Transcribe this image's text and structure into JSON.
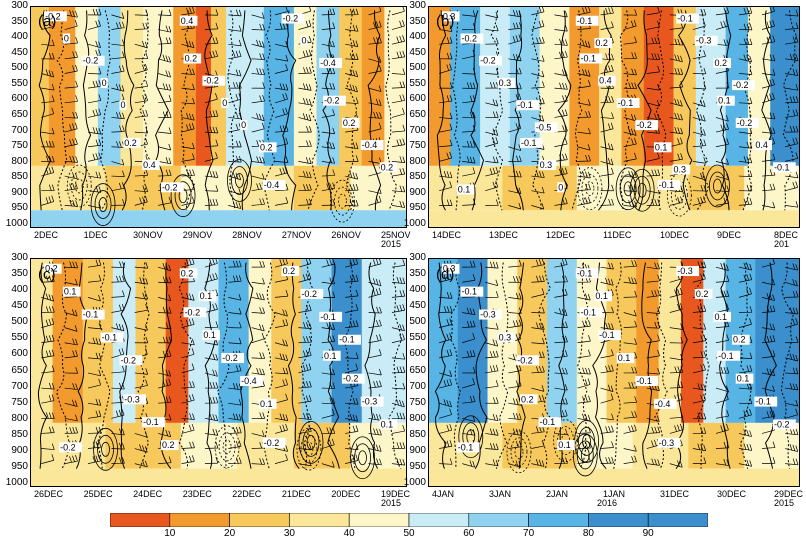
{
  "figure": {
    "y_ticks": [
      "300",
      "350",
      "400",
      "450",
      "500",
      "550",
      "600",
      "650",
      "700",
      "750",
      "800",
      "850",
      "900",
      "950",
      "1000"
    ],
    "colors": {
      "10": "#e8581e",
      "20": "#f29a2e",
      "30": "#f7c95c",
      "40": "#fbe79a",
      "50": "#fdf6c8",
      "60": "#c9ecf6",
      "70": "#8fd3f0",
      "80": "#57b4e4",
      "90": "#3a8fcc"
    }
  },
  "chart_data": [
    {
      "type": "heatmap",
      "panel_label": "(a)",
      "x_ticks": [
        "2DEC",
        "1DEC",
        "30NOV",
        "29NOV",
        "28NOV",
        "27NOV",
        "26NOV",
        "25NOV"
      ],
      "x_year": "2015",
      "y_ticks": [
        "300",
        "350",
        "400",
        "450",
        "500",
        "550",
        "600",
        "650",
        "700",
        "750",
        "800",
        "850",
        "900",
        "950",
        "1000"
      ],
      "contour_labels": [
        "-0.2",
        "0.2",
        "-0.2",
        "0.2",
        "-0.4",
        "0",
        "-0.2",
        "0.2",
        "0.4",
        "-0.2",
        "-0.2",
        "0",
        "-0.4",
        "-0.2",
        "0",
        "0",
        "0",
        "0.2",
        "0.4",
        "-0.4",
        "0",
        "0.2"
      ]
    },
    {
      "type": "heatmap",
      "panel_label": "(b)",
      "x_ticks": [
        "14DEC",
        "13DEC",
        "12DEC",
        "11DEC",
        "10DEC",
        "9DEC",
        "8DEC"
      ],
      "x_year": "201",
      "y_ticks": [
        "300",
        "350",
        "400",
        "450",
        "500",
        "550",
        "600",
        "650",
        "700",
        "750",
        "800",
        "850",
        "900",
        "950",
        "1000"
      ],
      "contour_labels": [
        "0.3",
        "-0.1",
        "0.1",
        "-0.1",
        "-0.1",
        "-0.2",
        "0.4",
        "-0.2",
        "0.3",
        "-0.1",
        "-0.2",
        "-0.1",
        "0.4",
        "0",
        "-0.3",
        "0.3",
        "-0.2",
        "-0.1",
        "-0.1",
        "0.2",
        "-0.1",
        "0.1",
        "0.1",
        "0.2",
        "-0.2",
        "-0.5",
        "0.3"
      ]
    },
    {
      "type": "heatmap",
      "panel_label": "(c)",
      "x_ticks": [
        "26DEC",
        "25DEC",
        "24DEC",
        "23DEC",
        "22DEC",
        "21DEC",
        "20DEC",
        "19DEC"
      ],
      "x_year": "2015",
      "y_ticks": [
        "300",
        "350",
        "400",
        "450",
        "500",
        "550",
        "600",
        "650",
        "700",
        "750",
        "800",
        "850",
        "900",
        "950",
        "1000"
      ],
      "contour_labels": [
        "0.2",
        "-0.2",
        "0.1",
        "-0.3",
        "-0.2",
        "0.1",
        "0.1",
        "-0.2",
        "-0.1",
        "0.2",
        "-0.1",
        "-0.2",
        "-0.3",
        "0.2",
        "-0.2",
        "-0.1",
        "-0.4",
        "0.1",
        "0.2",
        "-0.1",
        "-0.2",
        "0.1",
        "-0.2",
        "0.1",
        "-0.1"
      ]
    },
    {
      "type": "heatmap",
      "panel_label": "(d)",
      "x_ticks": [
        "4JAN",
        "3JAN",
        "2JAN",
        "1JAN",
        "31DEC",
        "30DEC",
        "29DEC"
      ],
      "x_year_mid": "2016",
      "x_year": "2015",
      "y_ticks": [
        "300",
        "350",
        "400",
        "450",
        "500",
        "550",
        "600",
        "650",
        "700",
        "750",
        "800",
        "850",
        "900",
        "950",
        "1000"
      ],
      "contour_labels": [
        "0.3",
        "-0.1",
        "-0.1",
        "0.2",
        "-0.3",
        "-0.1",
        "-0.1",
        "0.1",
        "-0.1",
        "-0.3",
        "-0.3",
        "0.1",
        "-0.1",
        "0.1",
        "0.2",
        "0.3",
        "-0.1",
        "-0.2",
        "-0.1",
        "0.1",
        "-0.2",
        "-0.4",
        "-0.1",
        "0.1",
        "0.2"
      ]
    }
  ],
  "colorbar": {
    "ticks": [
      "10",
      "20",
      "30",
      "40",
      "50",
      "60",
      "70",
      "80",
      "90"
    ]
  }
}
